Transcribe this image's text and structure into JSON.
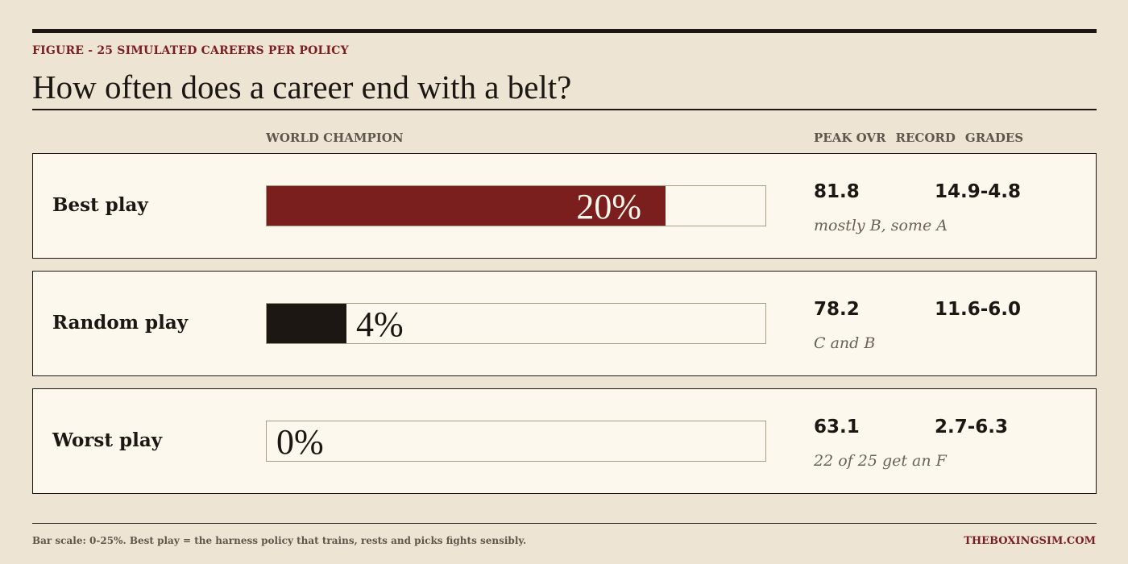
{
  "figure": {
    "kicker": "FIGURE - 25 SIMULATED CAREERS PER POLICY",
    "title": "How often does a career end with a belt?"
  },
  "columns": {
    "world_champion": "WORLD CHAMPION",
    "peak_ovr": "PEAK OVR",
    "record": "RECORD",
    "grades": "GRADES"
  },
  "chart_data": {
    "type": "bar",
    "title": "How often does a career end with a belt?",
    "subtitle": "FIGURE - 25 SIMULATED CAREERS PER POLICY",
    "categories": [
      "Best play",
      "Random play",
      "Worst play"
    ],
    "values": [
      20,
      4,
      0
    ],
    "value_labels": [
      "20%",
      "4%",
      "0%"
    ],
    "ylabel": "WORLD CHAMPION",
    "xlim": [
      0,
      25
    ],
    "unit": "%",
    "grid": false,
    "orientation": "horizontal",
    "colors": [
      "#7b1e1e",
      "#1c1712",
      "#1c1712"
    ]
  },
  "rows": [
    {
      "label": "Best play",
      "value_label": "20%",
      "peak_ovr": "81.8",
      "record": "14.9-4.8",
      "grades": "mostly B, some A"
    },
    {
      "label": "Random play",
      "value_label": "4%",
      "peak_ovr": "78.2",
      "record": "11.6-6.0",
      "grades": "C and B"
    },
    {
      "label": "Worst play",
      "value_label": "0%",
      "peak_ovr": "63.1",
      "record": "2.7-6.3",
      "grades": "22 of 25 get an F"
    }
  ],
  "footer": {
    "note": "Bar scale: 0-25%. Best play = the harness policy that trains, rests and picks fights sensibly.",
    "source": "THEBOXINGSIM.COM"
  }
}
